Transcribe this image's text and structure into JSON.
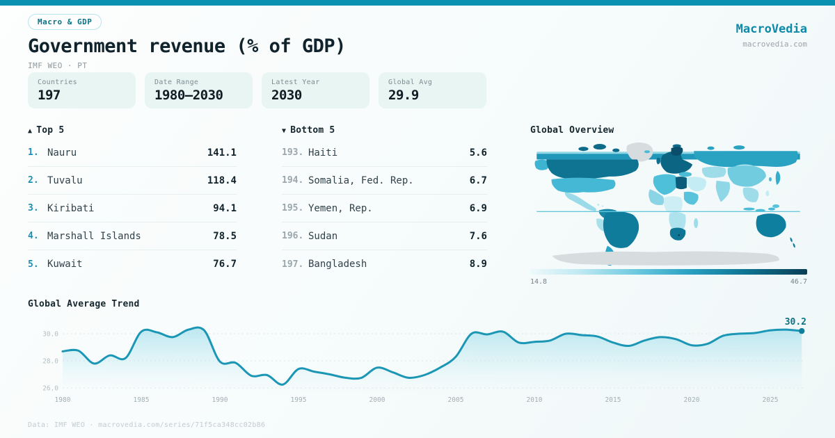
{
  "header": {
    "badge": "Macro & GDP",
    "title": "Government revenue (% of GDP)",
    "subtitle": "IMF WEO · PT"
  },
  "brand": {
    "name": "MacroVedia",
    "domain": "macrovedia.com"
  },
  "stats": [
    {
      "label": "Countries",
      "value": "197"
    },
    {
      "label": "Date Range",
      "value": "1980—2030"
    },
    {
      "label": "Latest Year",
      "value": "2030"
    },
    {
      "label": "Global Avg",
      "value": "29.9"
    }
  ],
  "top5": {
    "arrow": "▲",
    "title": "Top 5",
    "rows": [
      {
        "rank": "1.",
        "name": "Nauru",
        "value": "141.1"
      },
      {
        "rank": "2.",
        "name": "Tuvalu",
        "value": "118.4"
      },
      {
        "rank": "3.",
        "name": "Kiribati",
        "value": "94.1"
      },
      {
        "rank": "4.",
        "name": "Marshall Islands",
        "value": "78.5"
      },
      {
        "rank": "5.",
        "name": "Kuwait",
        "value": "76.7"
      }
    ]
  },
  "bottom5": {
    "arrow": "▼",
    "title": "Bottom 5",
    "rows": [
      {
        "rank": "193.",
        "name": "Haiti",
        "value": "5.6"
      },
      {
        "rank": "194.",
        "name": "Somalia, Fed. Rep.",
        "value": "6.7"
      },
      {
        "rank": "195.",
        "name": "Yemen, Rep.",
        "value": "6.9"
      },
      {
        "rank": "196.",
        "name": "Sudan",
        "value": "7.6"
      },
      {
        "rank": "197.",
        "name": "Bangladesh",
        "value": "8.9"
      }
    ]
  },
  "map": {
    "title": "Global Overview",
    "scale_min": "14.8",
    "scale_max": "46.7"
  },
  "trend": {
    "title": "Global Average Trend",
    "end_label": "30.2"
  },
  "footer": {
    "text": "Data: IMF WEO · macrovedia.com/series/71f5ca348cc02b86"
  },
  "colors": {
    "accent": "#0a90b0",
    "brand": "#0e8aa8",
    "badge_text": "#0b7285",
    "line": "#1b96b5",
    "dot": "#0e7f9e",
    "card_bg": "#e9f5f3",
    "rank_top": "#1b8fb1",
    "rank_bottom": "#9aa6ac",
    "map_dark": "#0f7392",
    "map_mid": "#2aa2c2",
    "map_light": "#8fd7e7",
    "map_gray": "#d7dcdf"
  },
  "chart_data": [
    {
      "type": "line",
      "title": "Global Average Trend",
      "x_years": [
        1980,
        1981,
        1982,
        1983,
        1984,
        1985,
        1986,
        1987,
        1988,
        1989,
        1990,
        1991,
        1992,
        1993,
        1994,
        1995,
        1996,
        1997,
        1998,
        1999,
        2000,
        2001,
        2002,
        2003,
        2004,
        2005,
        2006,
        2007,
        2008,
        2009,
        2010,
        2011,
        2012,
        2013,
        2014,
        2015,
        2016,
        2017,
        2018,
        2019,
        2020,
        2021,
        2022,
        2023,
        2024,
        2025,
        2026,
        2027
      ],
      "values": [
        28.7,
        28.75,
        27.8,
        28.4,
        28.2,
        30.15,
        30.1,
        29.75,
        30.3,
        30.25,
        27.95,
        27.85,
        26.9,
        26.95,
        26.25,
        27.4,
        27.2,
        27.0,
        26.75,
        26.75,
        27.5,
        27.15,
        26.75,
        26.95,
        27.5,
        28.3,
        30.0,
        29.95,
        30.15,
        29.35,
        29.4,
        29.5,
        30.0,
        29.9,
        29.8,
        29.35,
        29.1,
        29.5,
        29.75,
        29.6,
        29.15,
        29.25,
        29.85,
        30.0,
        30.05,
        30.25,
        30.3,
        30.2
      ],
      "end_label": "30.2",
      "ylim": [
        25.6,
        31.0
      ],
      "yticks": [
        26.0,
        28.0,
        30.0
      ],
      "xticks": [
        1980,
        1985,
        1990,
        1995,
        2000,
        2005,
        2010,
        2015,
        2020,
        2025
      ],
      "grid": "dashed",
      "legend": "none"
    },
    {
      "type": "heatmap",
      "subtype": "world-choropleth",
      "title": "Global Overview",
      "scale_min": 14.8,
      "scale_max": 46.7
    }
  ]
}
